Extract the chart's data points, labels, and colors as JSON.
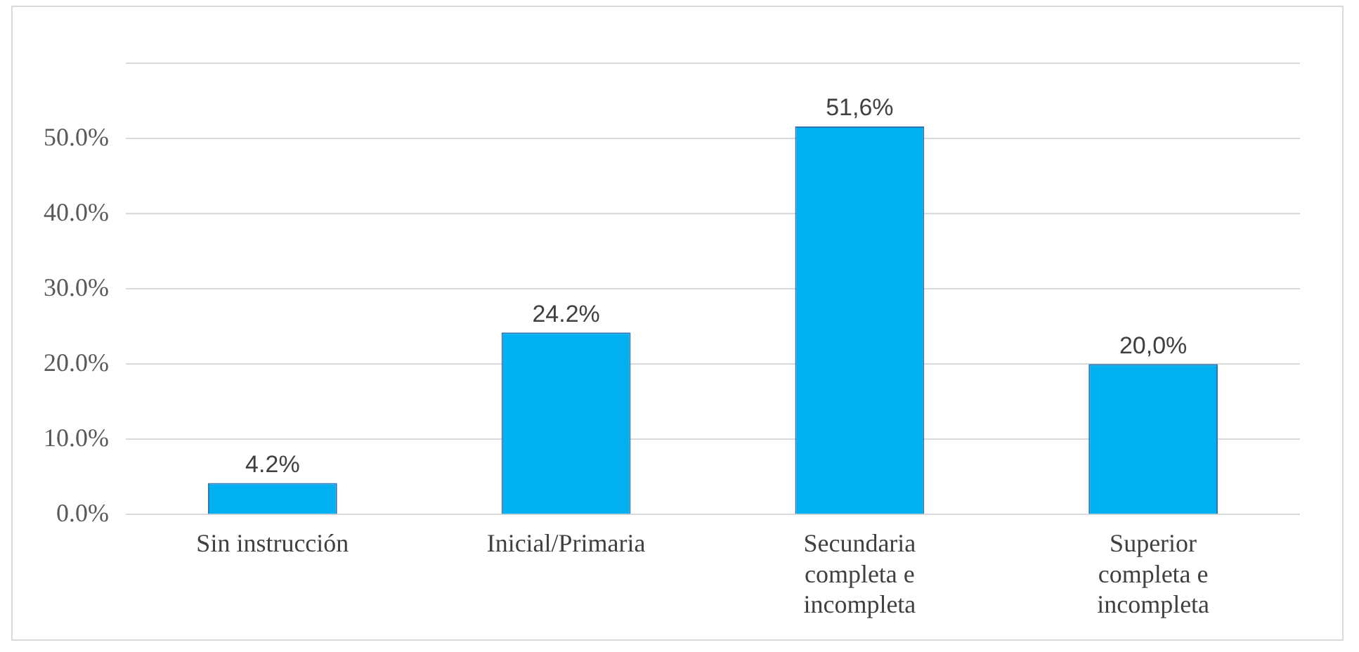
{
  "chart_data": {
    "type": "bar",
    "categories": [
      "Sin instrucción",
      "Inicial/Primaria",
      "Secundaria completa e incompleta",
      "Superior completa e incompleta"
    ],
    "values": [
      4.2,
      24.2,
      51.6,
      20.0
    ],
    "value_labels": [
      "4.2%",
      "24.2%",
      "51,6%",
      "20,0%"
    ],
    "color": "#00b0f0",
    "ylim": [
      0,
      60
    ],
    "yticks": [
      {
        "value": 0,
        "label": "0.0%"
      },
      {
        "value": 10,
        "label": "10.0%"
      },
      {
        "value": 20,
        "label": "20.0%"
      },
      {
        "value": 30,
        "label": "30.0%"
      },
      {
        "value": 40,
        "label": "40.0%"
      },
      {
        "value": 50,
        "label": "50.0%"
      },
      {
        "value": 60,
        "label": null
      }
    ],
    "grid": "y",
    "legend": false
  }
}
